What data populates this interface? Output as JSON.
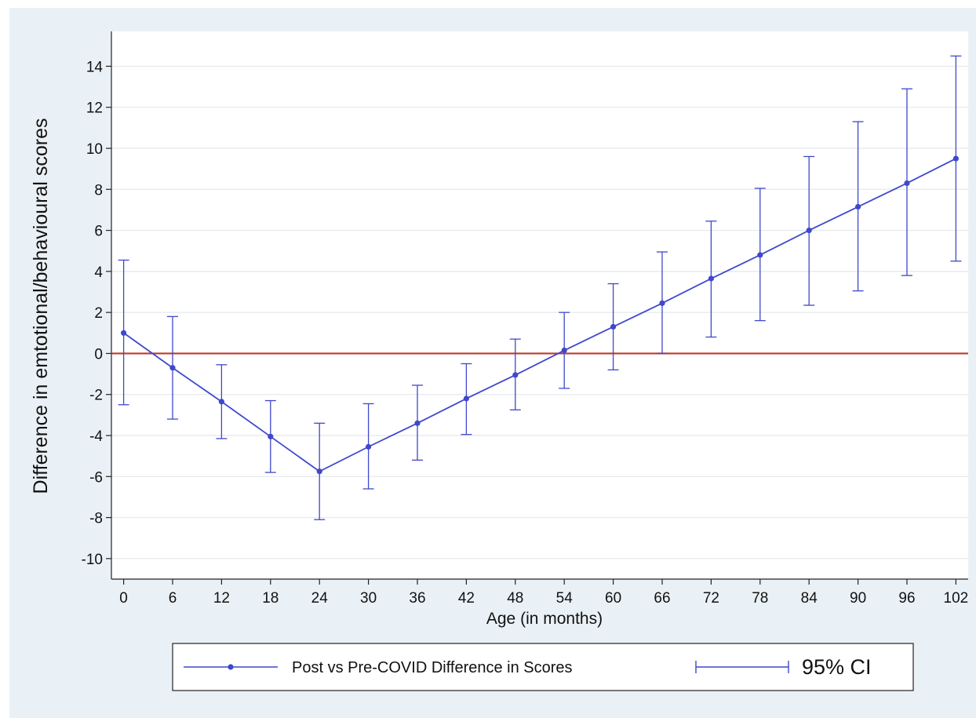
{
  "chart_data": {
    "type": "line",
    "title": "",
    "xlabel": "Age (in months)",
    "ylabel": "Difference in emtotional/behavioural scores",
    "x": [
      0,
      6,
      12,
      18,
      24,
      30,
      36,
      42,
      48,
      54,
      60,
      66,
      72,
      78,
      84,
      90,
      96,
      102
    ],
    "xticks": [
      0,
      6,
      12,
      18,
      24,
      30,
      36,
      42,
      48,
      54,
      60,
      66,
      72,
      78,
      84,
      90,
      96,
      102
    ],
    "yticks": [
      -10,
      -8,
      -6,
      -4,
      -2,
      0,
      2,
      4,
      6,
      8,
      10,
      12,
      14
    ],
    "xlim": [
      -1.5,
      103.5
    ],
    "ylim": [
      -11,
      15.7
    ],
    "grid": true,
    "reference_line": {
      "y": 0,
      "color": "#c0392b"
    },
    "series": [
      {
        "name": "Post vs Pre-COVID Difference in Scores",
        "color": "#3f48cc",
        "values": [
          1.0,
          -0.7,
          -2.35,
          -4.05,
          -5.75,
          -4.55,
          -3.4,
          -2.2,
          -1.05,
          0.15,
          1.3,
          2.45,
          3.65,
          4.8,
          6.0,
          7.15,
          8.3,
          9.5
        ],
        "ci_lower": [
          -2.5,
          -3.2,
          -4.15,
          -5.8,
          -8.1,
          -6.6,
          -5.2,
          -3.95,
          -2.75,
          -1.7,
          -0.8,
          0.0,
          0.8,
          1.6,
          2.35,
          3.05,
          3.8,
          4.5
        ],
        "ci_upper": [
          4.55,
          1.8,
          -0.55,
          -2.3,
          -3.4,
          -2.45,
          -1.55,
          -0.5,
          0.7,
          2.0,
          3.4,
          4.95,
          6.45,
          8.05,
          9.6,
          11.3,
          12.9,
          14.5
        ]
      }
    ],
    "legend": {
      "placement": "bottom",
      "series_label": "Post vs Pre-COVID Difference in Scores",
      "ci_label": "95% CI"
    }
  }
}
